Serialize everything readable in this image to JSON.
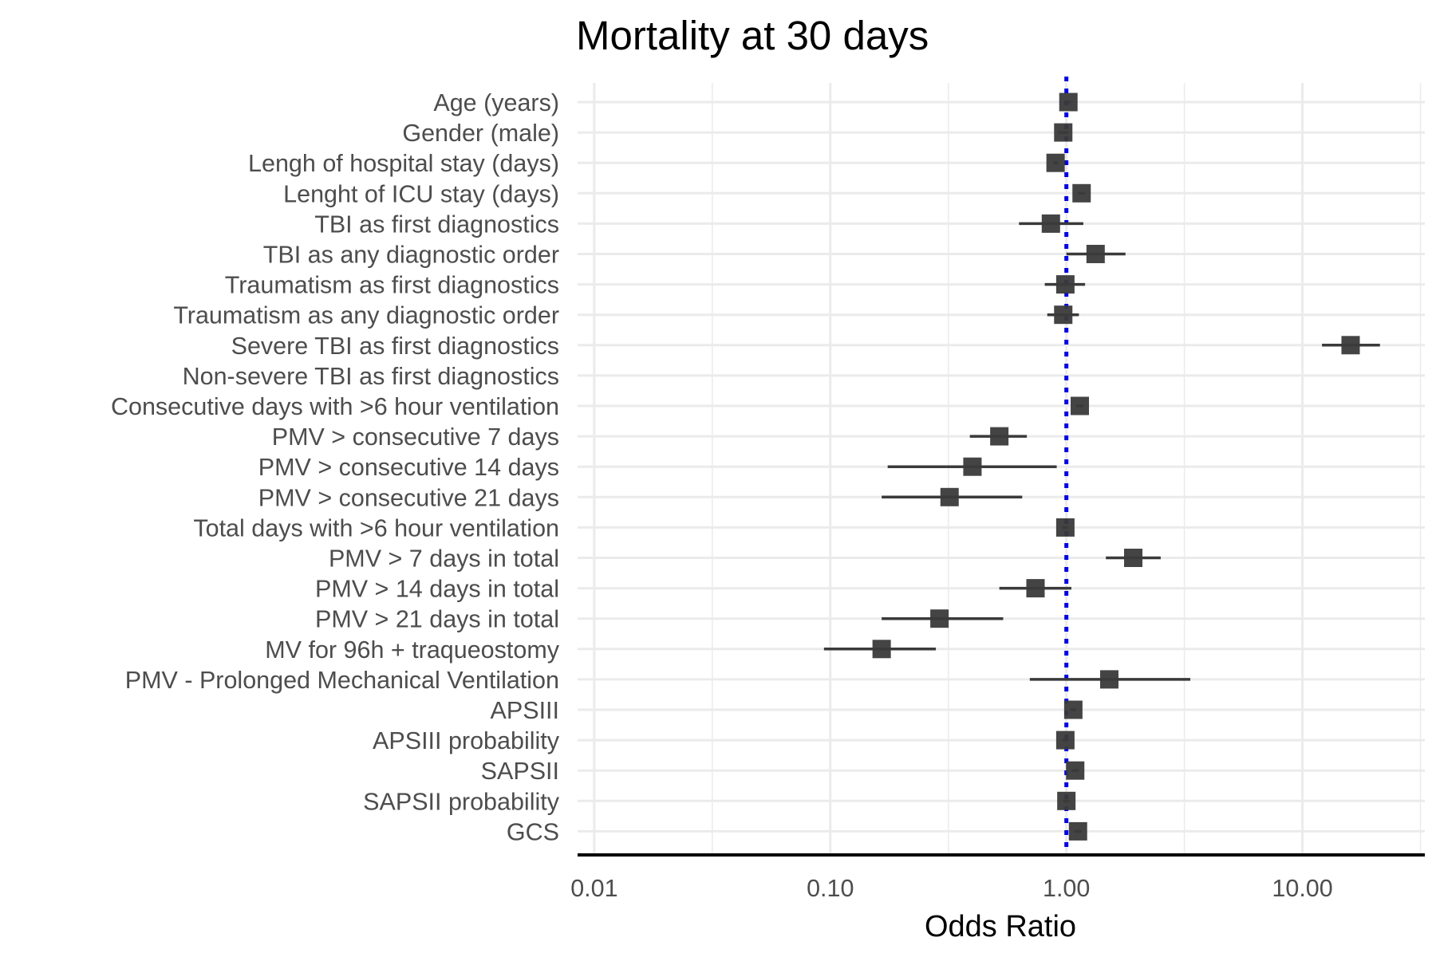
{
  "chart_data": {
    "type": "forest",
    "title": "Mortality at 30 days",
    "xlabel": "Odds Ratio",
    "x_scale": "log10",
    "xlim": [
      0.0085,
      33
    ],
    "x_ticks": [
      0.01,
      0.1,
      1,
      10
    ],
    "x_tick_labels": [
      "0.01",
      "0.10",
      "1.00",
      "10.00"
    ],
    "reference_line": {
      "x": 1,
      "style": "dotted",
      "color": "#0000ee"
    },
    "grid": true,
    "colors": {
      "point": "#3a3a3a",
      "ci": "#3a3a3a",
      "grid": "#ebebeb",
      "axis": "#000000"
    },
    "rows": [
      {
        "label": "Age (years)",
        "or": 1.02,
        "lo": 1.0,
        "hi": 1.04
      },
      {
        "label": "Gender (male)",
        "or": 0.97,
        "lo": 0.92,
        "hi": 1.02
      },
      {
        "label": "Lengh of hospital stay (days)",
        "or": 0.9,
        "lo": 0.88,
        "hi": 0.92
      },
      {
        "label": "Lenght of ICU stay (days)",
        "or": 1.16,
        "lo": 1.12,
        "hi": 1.2
      },
      {
        "label": "TBI as first diagnostics",
        "or": 0.86,
        "lo": 0.63,
        "hi": 1.18
      },
      {
        "label": "TBI as any diagnostic order",
        "or": 1.33,
        "lo": 1.0,
        "hi": 1.78
      },
      {
        "label": "Traumatism as first diagnostics",
        "or": 0.99,
        "lo": 0.81,
        "hi": 1.2
      },
      {
        "label": "Traumatism as any diagnostic order",
        "or": 0.97,
        "lo": 0.83,
        "hi": 1.13
      },
      {
        "label": "Severe TBI as first diagnostics",
        "or": 16.0,
        "lo": 12.1,
        "hi": 21.3
      },
      {
        "label": "Non-severe TBI as first diagnostics",
        "or": null,
        "lo": null,
        "hi": null
      },
      {
        "label": "Consecutive days with >6 hour ventilation",
        "or": 1.14,
        "lo": 1.1,
        "hi": 1.18
      },
      {
        "label": "PMV > consecutive 7 days",
        "or": 0.52,
        "lo": 0.39,
        "hi": 0.68
      },
      {
        "label": "PMV > consecutive 14 days",
        "or": 0.4,
        "lo": 0.175,
        "hi": 0.91
      },
      {
        "label": "PMV > consecutive 21 days",
        "or": 0.32,
        "lo": 0.165,
        "hi": 0.65
      },
      {
        "label": "Total days with >6 hour ventilation",
        "or": 0.99,
        "lo": 0.96,
        "hi": 1.02
      },
      {
        "label": "PMV > 7 days in total",
        "or": 1.92,
        "lo": 1.47,
        "hi": 2.51
      },
      {
        "label": "PMV > 14 days in total",
        "or": 0.74,
        "lo": 0.52,
        "hi": 1.05
      },
      {
        "label": "PMV > 21 days in total",
        "or": 0.29,
        "lo": 0.165,
        "hi": 0.54
      },
      {
        "label": "MV for 96h + traqueostomy",
        "or": 0.165,
        "lo": 0.094,
        "hi": 0.28
      },
      {
        "label": "PMV - Prolonged Mechanical Ventilation",
        "or": 1.52,
        "lo": 0.7,
        "hi": 3.35
      },
      {
        "label": "APSIII",
        "or": 1.07,
        "lo": 1.04,
        "hi": 1.1
      },
      {
        "label": "APSIII probability",
        "or": 0.99,
        "lo": 0.96,
        "hi": 1.02
      },
      {
        "label": "SAPSII",
        "or": 1.09,
        "lo": 1.05,
        "hi": 1.13
      },
      {
        "label": "SAPSII probability",
        "or": 1.0,
        "lo": 0.97,
        "hi": 1.03
      },
      {
        "label": "GCS",
        "or": 1.12,
        "lo": 1.08,
        "hi": 1.16
      }
    ]
  }
}
